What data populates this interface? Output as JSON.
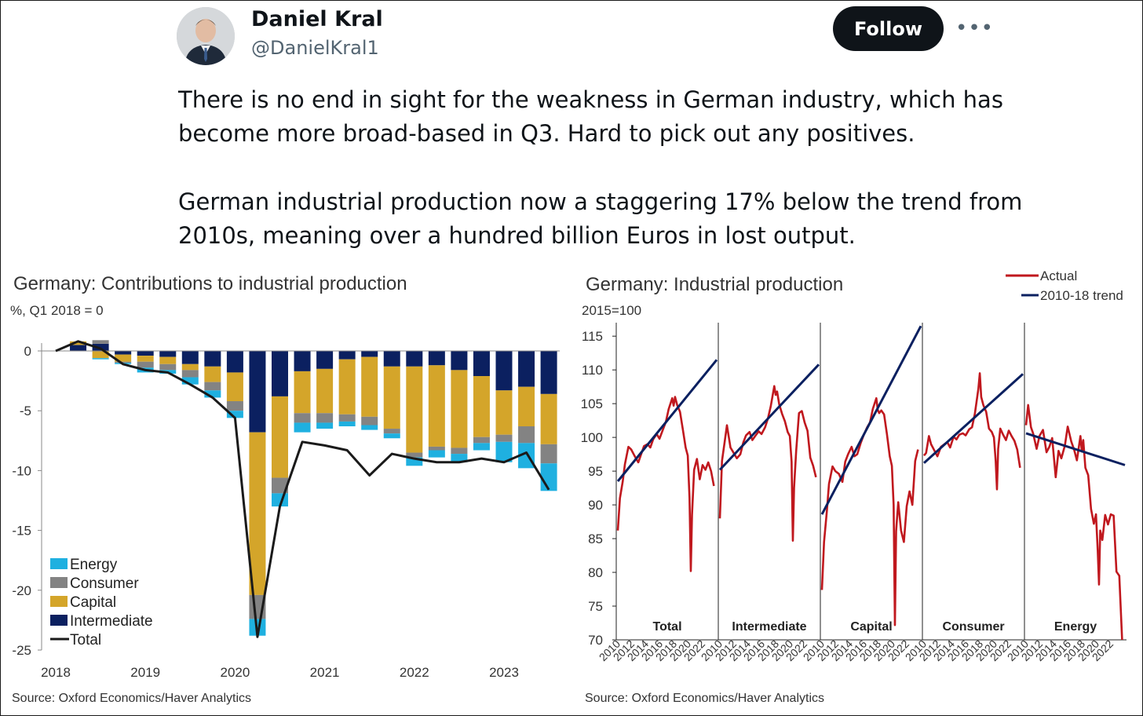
{
  "tweet": {
    "author_name": "Daniel Kral",
    "author_handle": "@DanielKral1",
    "follow_label": "Follow",
    "more_label": "•••",
    "paragraphs": [
      "There is no end in sight for the weakness in German industry, which has become more broad-based in Q3. Hard to pick out any positives.",
      "German industrial production now a staggering 17% below the trend from 2010s, meaning over a hundred billion Euros in lost output."
    ]
  },
  "colors": {
    "energy": "#1fb0e0",
    "consumer": "#838383",
    "capital": "#d4a52a",
    "intermediate": "#0b2060",
    "total": "#1a1a1a",
    "actual": "#c0181e",
    "trend": "#0b2060",
    "follow_bg": "#0f1419",
    "handle": "#536471"
  },
  "chart_data": [
    {
      "type": "bar",
      "stacked": true,
      "title": "Germany: Contributions to industrial production",
      "subtitle": "%, Q1 2018 = 0",
      "source": "Source: Oxford Economics/Haver Analytics",
      "ylim": [
        -25,
        0
      ],
      "y_ticks": [
        "0",
        "-5",
        "-10",
        "-15",
        "-20",
        "-25"
      ],
      "y_tick_values": [
        0,
        -5,
        -10,
        -15,
        -20,
        -25
      ],
      "x_tick_labels": [
        "2018",
        "2019",
        "2020",
        "2021",
        "2022",
        "2023"
      ],
      "x_tick_values": [
        0,
        4,
        8,
        12,
        16,
        20
      ],
      "legend": [
        "Energy",
        "Consumer",
        "Capital",
        "Intermediate",
        "Total"
      ],
      "legend_position": "bottom-left",
      "categories": [
        "2018Q1",
        "2018Q2",
        "2018Q3",
        "2018Q4",
        "2019Q1",
        "2019Q2",
        "2019Q3",
        "2019Q4",
        "2020Q1",
        "2020Q2",
        "2020Q3",
        "2020Q4",
        "2021Q1",
        "2021Q2",
        "2021Q3",
        "2021Q4",
        "2022Q1",
        "2022Q2",
        "2022Q3",
        "2022Q4",
        "2023Q1",
        "2023Q2",
        "2023Q3"
      ],
      "series": [
        {
          "name": "Intermediate",
          "values": [
            0,
            0.5,
            0.6,
            -0.3,
            -0.4,
            -0.5,
            -1.1,
            -1.3,
            -1.8,
            -6.8,
            -3.8,
            -1.7,
            -1.5,
            -0.7,
            -0.5,
            -1.3,
            -1.3,
            -1.2,
            -1.6,
            -2.1,
            -3.3,
            -3.0,
            -3.6
          ]
        },
        {
          "name": "Capital",
          "values": [
            0,
            0.3,
            -0.6,
            -0.6,
            -0.5,
            -0.6,
            -0.5,
            -1.3,
            -2.4,
            -13.6,
            -6.8,
            -3.5,
            -3.7,
            -4.6,
            -5.0,
            -5.2,
            -7.2,
            -6.8,
            -6.5,
            -5.1,
            -3.7,
            -3.3,
            -4.2
          ]
        },
        {
          "name": "Consumer",
          "values": [
            0,
            0,
            0.3,
            -0.1,
            -0.5,
            -0.5,
            -0.6,
            -0.7,
            -0.8,
            -2.0,
            -1.3,
            -0.8,
            -0.8,
            -0.6,
            -0.7,
            -0.4,
            -0.4,
            -0.3,
            -0.5,
            -0.5,
            -0.6,
            -1.4,
            -1.6
          ]
        },
        {
          "name": "Energy",
          "values": [
            0,
            0,
            -0.1,
            -0.1,
            -0.4,
            -0.3,
            -0.6,
            -0.6,
            -0.6,
            -1.4,
            -1.1,
            -0.8,
            -0.5,
            -0.4,
            -0.4,
            -0.4,
            -0.7,
            -0.6,
            -0.7,
            -0.6,
            -1.7,
            -2.1,
            -2.3
          ]
        }
      ],
      "total": {
        "name": "Total",
        "values": [
          0,
          0.8,
          0.2,
          -1.1,
          -1.6,
          -1.8,
          -2.8,
          -3.9,
          -5.6,
          -23.9,
          -13.0,
          -7.6,
          -7.9,
          -8.3,
          -10.4,
          -8.6,
          -9.0,
          -9.3,
          -9.3,
          -9.0,
          -9.3,
          -8.5,
          -11.6
        ]
      }
    },
    {
      "type": "line",
      "title": "Germany: Industrial production",
      "subtitle": "2015=100",
      "source": "Source: Oxford Economics/Haver Analytics",
      "ylim": [
        70,
        117
      ],
      "y_ticks": [
        "115",
        "110",
        "105",
        "100",
        "95",
        "90",
        "85",
        "80",
        "75",
        "70"
      ],
      "y_tick_values": [
        115,
        110,
        105,
        100,
        95,
        90,
        85,
        80,
        75,
        70
      ],
      "x_tick_labels": [
        "2010",
        "2012",
        "2014",
        "2016",
        "2018",
        "2020",
        "2022"
      ],
      "x_tick_values": [
        2010,
        2012,
        2014,
        2016,
        2018,
        2020,
        2022
      ],
      "xlim": [
        2010,
        2024
      ],
      "legend": [
        "Actual",
        "2010-18 trend"
      ],
      "legend_position": "top-right",
      "panels": [
        {
          "name": "Total",
          "actual": {
            "x": [
              2010,
              2010.3,
              2010.7,
              2011,
              2011.5,
              2011.9,
              2012.4,
              2012.9,
              2013.3,
              2013.7,
              2014.2,
              2014.6,
              2015,
              2015.5,
              2015.9,
              2016.4,
              2016.8,
              2017.2,
              2017.7,
              2017.9,
              2018.1,
              2018.4,
              2018.8,
              2019.2,
              2019.6,
              2019.9,
              2020.15,
              2020.33,
              2020.5,
              2020.8,
              2021.2,
              2021.6,
              2022,
              2022.4,
              2022.8,
              2023.2,
              2023.6
            ],
            "y": [
              86.2,
              91,
              93.5,
              96,
              98.6,
              98.2,
              97.2,
              96.3,
              97.5,
              98.7,
              99.0,
              98.5,
              99.7,
              100.5,
              99.8,
              101.2,
              102.3,
              104.2,
              105.8,
              104.7,
              106.0,
              104.8,
              103.8,
              101.2,
              98.5,
              97.3,
              91.0,
              80.2,
              88.5,
              95.2,
              96.8,
              93.8,
              95.9,
              95.2,
              96.3,
              95.0,
              92.8
            ]
          },
          "trend": {
            "x": [
              2010,
              2024
            ],
            "y": [
              93.5,
              111.5
            ]
          }
        },
        {
          "name": "Intermediate",
          "actual": {
            "x": [
              2010,
              2010.3,
              2010.7,
              2011,
              2011.5,
              2011.9,
              2012.4,
              2012.9,
              2013.3,
              2013.7,
              2014.2,
              2014.6,
              2015,
              2015.5,
              2015.9,
              2016.4,
              2016.8,
              2017.2,
              2017.7,
              2017.9,
              2018.1,
              2018.4,
              2018.8,
              2019.2,
              2019.6,
              2019.9,
              2020.15,
              2020.33,
              2020.5,
              2020.8,
              2021.2,
              2021.6,
              2022,
              2022.4,
              2022.8,
              2023.2,
              2023.6
            ],
            "y": [
              88.0,
              96.5,
              99.5,
              101.8,
              98.5,
              97.8,
              96.9,
              97.5,
              99.2,
              100.3,
              100.8,
              99.6,
              100.2,
              100.9,
              100.5,
              101.5,
              102.8,
              104.6,
              107.6,
              106.3,
              106.8,
              104.9,
              103.5,
              102.4,
              100.8,
              100.2,
              96.4,
              84.7,
              92.5,
              98.0,
              103.6,
              103.9,
              102.2,
              101.0,
              97.0,
              95.8,
              94.1
            ]
          },
          "trend": {
            "x": [
              2010,
              2024
            ],
            "y": [
              95.2,
              110.8
            ]
          }
        },
        {
          "name": "Capital",
          "actual": {
            "x": [
              2010,
              2010.3,
              2010.7,
              2011,
              2011.5,
              2011.9,
              2012.4,
              2012.9,
              2013.3,
              2013.7,
              2014.2,
              2014.6,
              2015,
              2015.5,
              2015.9,
              2016.4,
              2016.8,
              2017.2,
              2017.7,
              2017.9,
              2018.1,
              2018.4,
              2018.8,
              2019.2,
              2019.6,
              2019.9,
              2020.15,
              2020.33,
              2020.5,
              2020.8,
              2021.2,
              2021.6,
              2022,
              2022.4,
              2022.8,
              2023.2,
              2023.6
            ],
            "y": [
              77.4,
              84.5,
              89.1,
              93.1,
              95.7,
              95.0,
              94.6,
              93.4,
              96.4,
              97.5,
              98.6,
              97.2,
              97.5,
              99.2,
              100.3,
              101.5,
              102.2,
              104.2,
              105.8,
              104.1,
              103.6,
              104.0,
              103.4,
              100.5,
              97.2,
              95.8,
              90.0,
              72.2,
              86.1,
              90.4,
              86.2,
              84.5,
              89.8,
              92.0,
              90.0,
              96.5,
              98.2
            ]
          },
          "trend": {
            "x": [
              2010,
              2024
            ],
            "y": [
              88.6,
              116.5
            ]
          }
        },
        {
          "name": "Consumer",
          "actual": {
            "x": [
              2010,
              2010.3,
              2010.7,
              2011,
              2011.5,
              2011.9,
              2012.4,
              2012.9,
              2013.3,
              2013.7,
              2014.2,
              2014.6,
              2015,
              2015.5,
              2015.9,
              2016.4,
              2016.8,
              2017.2,
              2017.7,
              2017.9,
              2018.1,
              2018.4,
              2018.8,
              2019.2,
              2019.6,
              2019.9,
              2020.15,
              2020.33,
              2020.5,
              2020.8,
              2021.2,
              2021.6,
              2022,
              2022.4,
              2022.8,
              2023.2,
              2023.6
            ],
            "y": [
              97.3,
              97.7,
              100.2,
              99.0,
              98.0,
              97.2,
              98.6,
              99.0,
              99.3,
              98.5,
              100.1,
              99.7,
              100.4,
              100.6,
              100.3,
              101.2,
              101.5,
              103.5,
              107.2,
              109.5,
              106.0,
              104.8,
              103.8,
              101.3,
              100.8,
              100.0,
              96.5,
              92.3,
              98.3,
              101.3,
              100.4,
              99.6,
              101.0,
              100.2,
              99.5,
              98.2,
              95.5
            ]
          },
          "trend": {
            "x": [
              2010,
              2024
            ],
            "y": [
              96.2,
              109.4
            ]
          }
        },
        {
          "name": "Energy",
          "actual": {
            "x": [
              2010,
              2010.3,
              2010.7,
              2011,
              2011.5,
              2011.9,
              2012.4,
              2012.9,
              2013.3,
              2013.7,
              2014.2,
              2014.6,
              2015,
              2015.5,
              2015.9,
              2016.4,
              2016.8,
              2017.2,
              2017.7,
              2017.9,
              2018.1,
              2018.4,
              2018.8,
              2019.2,
              2019.6,
              2019.9,
              2020.15,
              2020.33,
              2020.5,
              2020.8,
              2021.2,
              2021.6,
              2022,
              2022.4,
              2022.8,
              2023.2,
              2023.6
            ],
            "y": [
              101.8,
              104.8,
              101.5,
              100.6,
              98.3,
              100.2,
              101.1,
              97.8,
              98.6,
              99.9,
              94.1,
              98.0,
              96.9,
              98.8,
              101.6,
              99.4,
              98.2,
              96.6,
              100.2,
              97.9,
              99.6,
              95.5,
              94.4,
              89.4,
              87.2,
              88.6,
              83.2,
              78.2,
              86.2,
              84.8,
              88.5,
              87.1,
              88.6,
              88.4,
              80.1,
              79.5,
              70.0
            ]
          },
          "trend": {
            "x": [
              2010,
              2024
            ],
            "y": [
              100.6,
              95.9
            ]
          }
        }
      ]
    }
  ]
}
